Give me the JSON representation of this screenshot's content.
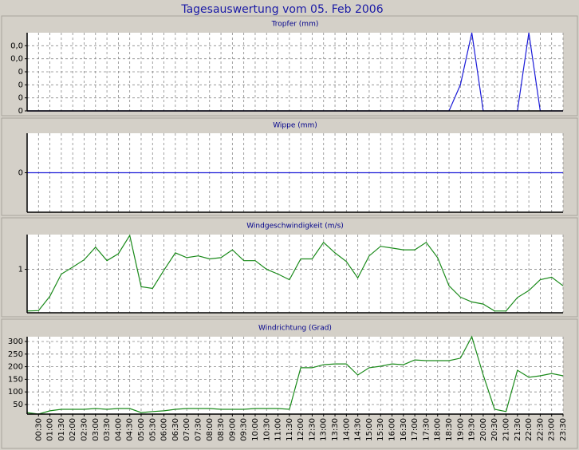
{
  "title": "Tagesauswertung vom 05. Feb 2006",
  "chart_data": [
    {
      "type": "line",
      "title": "Tropfer (mm)",
      "color": "#1c1cd8",
      "values": [
        0,
        0,
        0,
        0,
        0,
        0,
        0,
        0,
        0,
        0,
        0,
        0,
        0,
        0,
        0,
        0,
        0,
        0,
        0,
        0,
        0,
        0,
        0,
        0,
        0,
        0,
        0,
        0,
        0,
        0,
        0,
        0,
        0,
        0,
        0,
        0,
        0,
        0,
        0.02,
        0.06,
        0,
        0,
        0,
        0,
        0.06,
        0,
        0,
        0
      ],
      "ylim": [
        0,
        0.06
      ],
      "yticks": [
        0,
        {
          "value": 0.01,
          "label": "0"
        },
        {
          "value": 0.02,
          "label": "0"
        },
        {
          "value": 0.03,
          "label": "0"
        },
        {
          "value": 0.04,
          "label": "0,0"
        },
        {
          "value": 0.05,
          "label": "0,0"
        }
      ],
      "grid": true
    },
    {
      "type": "line",
      "title": "Wippe (mm)",
      "color": "#1c1cd8",
      "values": [
        0,
        0,
        0,
        0,
        0,
        0,
        0,
        0,
        0,
        0,
        0,
        0,
        0,
        0,
        0,
        0,
        0,
        0,
        0,
        0,
        0,
        0,
        0,
        0,
        0,
        0,
        0,
        0,
        0,
        0,
        0,
        0,
        0,
        0,
        0,
        0,
        0,
        0,
        0,
        0,
        0,
        0,
        0,
        0,
        0,
        0,
        0,
        0
      ],
      "ylim": [
        -1,
        1
      ],
      "yticks": [
        0
      ],
      "grid": true
    },
    {
      "type": "line",
      "title": "Windgeschwindigkeit (m/s)",
      "color": "#1a8a1a",
      "values": [
        0.04,
        0.05,
        0.38,
        0.89,
        1.05,
        1.22,
        1.51,
        1.2,
        1.36,
        1.78,
        0.6,
        0.56,
        0.98,
        1.38,
        1.27,
        1.31,
        1.24,
        1.27,
        1.45,
        1.2,
        1.2,
        1.0,
        0.89,
        0.76,
        1.24,
        1.24,
        1.62,
        1.38,
        1.18,
        0.8,
        1.31,
        1.53,
        1.49,
        1.45,
        1.45,
        1.62,
        1.27,
        0.62,
        0.36,
        0.25,
        0.2,
        0.04,
        0.04,
        0.35,
        0.51,
        0.76,
        0.82,
        0.62
      ],
      "ylim": [
        0,
        1.8
      ],
      "yticks": [
        1
      ],
      "grid": true
    },
    {
      "type": "line",
      "title": "Windrichtung (Grad)",
      "color": "#1a8a1a",
      "categories": [
        null,
        "00:30",
        "01:00",
        "01:30",
        "02:00",
        "02:30",
        "03:00",
        "03:30",
        "04:00",
        "04:30",
        "05:00",
        "05:30",
        "06:00",
        "06:30",
        "07:00",
        "07:30",
        "08:00",
        "08:30",
        "09:00",
        "09:30",
        "10:00",
        "10:30",
        "11:00",
        "11:30",
        "12:00",
        "12:30",
        "13:00",
        "13:30",
        "14:00",
        "14:30",
        "15:00",
        "15:30",
        "16:00",
        "16:30",
        "17:00",
        "17:30",
        "18:00",
        "18:30",
        "19:00",
        "19:30",
        "20:00",
        "20:30",
        "21:00",
        "21:30",
        "22:00",
        "22:30",
        "23:00",
        "23:30"
      ],
      "values": [
        18,
        12,
        25,
        31,
        31,
        31,
        34,
        31,
        34,
        34,
        18,
        22,
        25,
        31,
        34,
        34,
        34,
        31,
        31,
        31,
        34,
        34,
        34,
        31,
        196,
        196,
        208,
        211,
        211,
        167,
        196,
        202,
        211,
        208,
        227,
        224,
        224,
        224,
        234,
        319,
        167,
        31,
        22,
        186,
        158,
        164,
        173,
        164
      ],
      "ylim": [
        12,
        319
      ],
      "yticks": [
        50,
        100,
        150,
        200,
        250,
        300
      ],
      "grid": true
    }
  ]
}
